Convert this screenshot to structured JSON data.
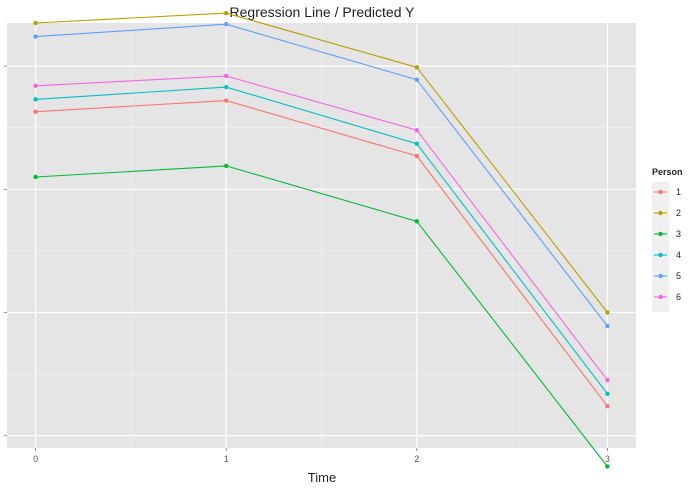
{
  "chart_data": {
    "type": "line",
    "title": "Regression Line / Predicted Y",
    "xlabel": "Time",
    "ylabel": "",
    "x": [
      0,
      1,
      2,
      3
    ],
    "x_tick_labels": [
      "0",
      "1",
      "2",
      "3"
    ],
    "xlim": [
      -0.15,
      3.15
    ],
    "ylim": [
      0.15,
      3.6
    ],
    "grid": true,
    "legend": {
      "title": "Person",
      "position": "right"
    },
    "colors": {
      "background": "#e5e5e5",
      "grid_major": "#ffffff",
      "grid_minor": "#f2f2f2",
      "text": "#222222"
    },
    "series": [
      {
        "name": "1",
        "color": "#f8766d",
        "values": [
          2.88,
          2.97,
          2.52,
          0.49
        ]
      },
      {
        "name": "2",
        "color": "#b79f00",
        "values": [
          3.6,
          3.68,
          3.24,
          1.25
        ]
      },
      {
        "name": "3",
        "color": "#00ba38",
        "values": [
          2.35,
          2.44,
          1.99,
          0.0
        ]
      },
      {
        "name": "4",
        "color": "#00bfc4",
        "values": [
          2.98,
          3.08,
          2.62,
          0.59
        ]
      },
      {
        "name": "5",
        "color": "#619cff",
        "values": [
          3.49,
          3.59,
          3.14,
          1.14
        ]
      },
      {
        "name": "6",
        "color": "#f564e3",
        "values": [
          3.09,
          3.17,
          2.73,
          0.7
        ]
      }
    ]
  }
}
